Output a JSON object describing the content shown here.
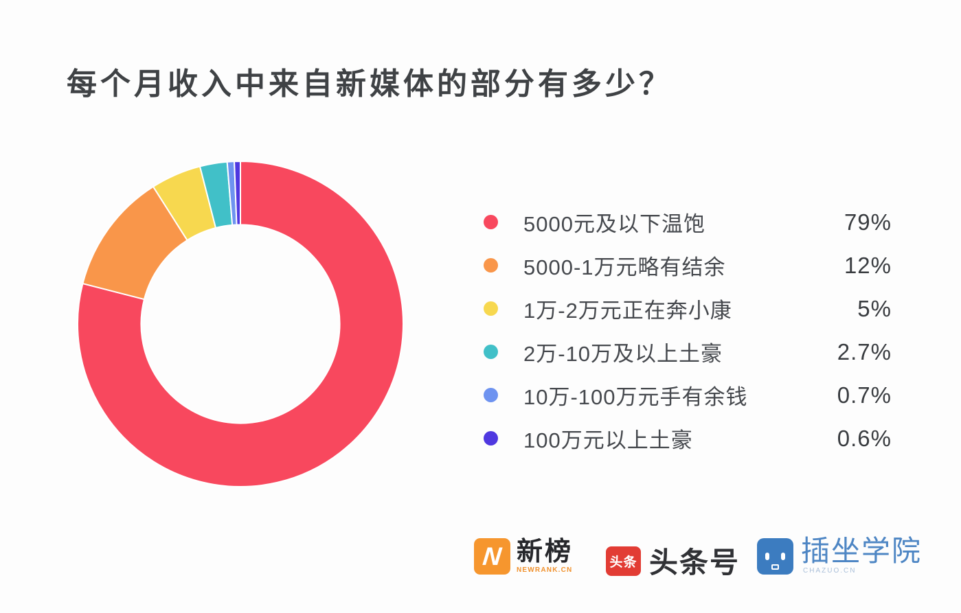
{
  "title": "每个月收入中来自新媒体的部分有多少？",
  "chart_data": {
    "type": "pie",
    "subtype": "donut",
    "title": "每个月收入中来自新媒体的部分有多少？",
    "categories": [
      "5000元及以下温饱",
      "5000-1万元略有结余",
      "1万-2万元正在奔小康",
      "2万-10万及以上土豪",
      "10万-100万元手有余钱",
      "100万元以上土豪"
    ],
    "values": [
      79,
      12,
      5,
      2.7,
      0.7,
      0.6
    ],
    "value_labels": [
      "79%",
      "12%",
      "5%",
      "2.7%",
      "0.7%",
      "0.6%"
    ],
    "colors": [
      "#f8485e",
      "#f9964a",
      "#f7d84f",
      "#41c0c8",
      "#6e93f0",
      "#4f38e0"
    ],
    "start_angle_deg": 0,
    "direction": "clockwise",
    "inner_radius_ratio": 0.61,
    "slice_gap_color": "#ffffff",
    "legend_position": "right",
    "grid": false
  },
  "logos": {
    "newrank": {
      "name": "新榜",
      "sub": "NEWRANK.CN",
      "icon_letter": "N",
      "icon_color": "#f6962e"
    },
    "toutiao": {
      "name": "头条号",
      "icon_text": "头条",
      "icon_color": "#e23c34"
    },
    "chazuo": {
      "name": "插坐学院",
      "sub": "CHAZUO.CN",
      "icon_color": "#3c7cc0"
    }
  }
}
